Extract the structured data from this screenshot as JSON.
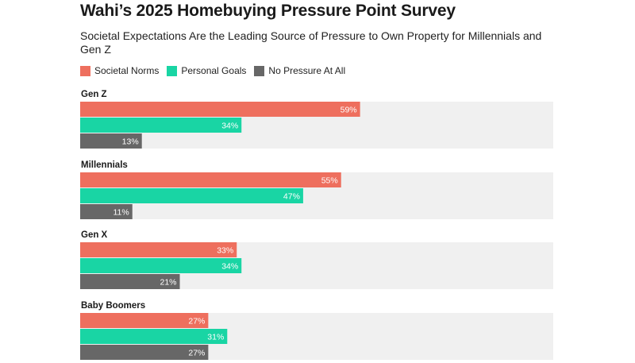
{
  "chart_data": {
    "type": "bar",
    "orientation": "horizontal",
    "title": "Wahi’s 2025 Homebuying Pressure Point Survey",
    "subtitle": "Societal Expectations Are the Leading Source of Pressure to Own Property for Millennials and Gen Z",
    "categories": [
      "Gen Z",
      "Millennials",
      "Gen X",
      "Baby Boomers"
    ],
    "series": [
      {
        "name": "Societal Norms",
        "color": "#ee6f5e",
        "values": [
          59,
          55,
          33,
          27
        ]
      },
      {
        "name": "Personal Goals",
        "color": "#19d5a4",
        "values": [
          34,
          47,
          34,
          31
        ]
      },
      {
        "name": "No Pressure At All",
        "color": "#676767",
        "values": [
          13,
          11,
          21,
          27
        ]
      }
    ],
    "value_suffix": "%",
    "xlim": [
      0,
      100
    ],
    "legend_position": "top-left",
    "grid": false,
    "background_track_color": "#f0f0f0"
  }
}
